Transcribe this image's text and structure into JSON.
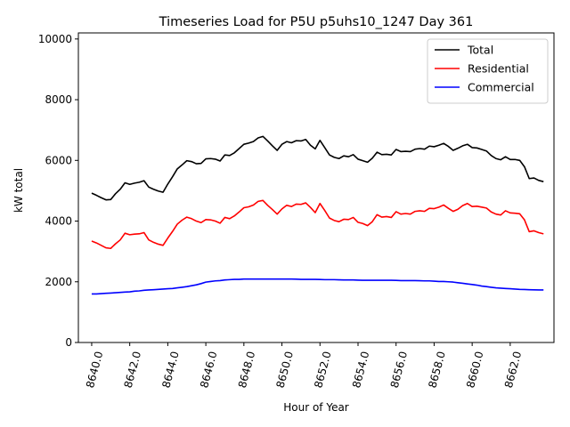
{
  "chart_data": {
    "type": "line",
    "title": "Timeseries Load for P5U p5uhs10_1247  Day 361",
    "xlabel": "Hour of Year",
    "ylabel": "kW total",
    "xlim": [
      8639.3,
      8664.3
    ],
    "ylim": [
      0,
      10200
    ],
    "xticks": [
      8640,
      8642,
      8644,
      8646,
      8648,
      8650,
      8652,
      8654,
      8656,
      8658,
      8660,
      8662
    ],
    "xtick_labels": [
      "8640.0",
      "8642.0",
      "8644.0",
      "8646.0",
      "8648.0",
      "8650.0",
      "8652.0",
      "8654.0",
      "8656.0",
      "8658.0",
      "8660.0",
      "8662.0"
    ],
    "yticks": [
      0,
      2000,
      4000,
      6000,
      8000,
      10000
    ],
    "ytick_labels": [
      "0",
      "2000",
      "4000",
      "6000",
      "8000",
      "10000"
    ],
    "grid": false,
    "legend_position": "top-right",
    "x": [
      8640.0,
      8640.25,
      8640.5,
      8640.75,
      8641.0,
      8641.25,
      8641.5,
      8641.75,
      8642.0,
      8642.25,
      8642.5,
      8642.75,
      8643.0,
      8643.25,
      8643.5,
      8643.75,
      8644.0,
      8644.25,
      8644.5,
      8644.75,
      8645.0,
      8645.25,
      8645.5,
      8645.75,
      8646.0,
      8646.25,
      8646.5,
      8646.75,
      8647.0,
      8647.25,
      8647.5,
      8647.75,
      8648.0,
      8648.25,
      8648.5,
      8648.75,
      8649.0,
      8649.25,
      8649.5,
      8649.75,
      8650.0,
      8650.25,
      8650.5,
      8650.75,
      8651.0,
      8651.25,
      8651.5,
      8651.75,
      8652.0,
      8652.25,
      8652.5,
      8652.75,
      8653.0,
      8653.25,
      8653.5,
      8653.75,
      8654.0,
      8654.25,
      8654.5,
      8654.75,
      8655.0,
      8655.25,
      8655.5,
      8655.75,
      8656.0,
      8656.25,
      8656.5,
      8656.75,
      8657.0,
      8657.25,
      8657.5,
      8657.75,
      8658.0,
      8658.25,
      8658.5,
      8658.75,
      8659.0,
      8659.25,
      8659.5,
      8659.75,
      8660.0,
      8660.25,
      8660.5,
      8660.75,
      8661.0,
      8661.25,
      8661.5,
      8661.75,
      8662.0,
      8662.25,
      8662.5,
      8662.75,
      8663.0,
      8663.25,
      8663.5,
      8663.75
    ],
    "series": [
      {
        "name": "Total",
        "color": "#000000",
        "values": [
          4920,
          4850,
          4770,
          4700,
          4710,
          4900,
          5050,
          5260,
          5210,
          5250,
          5280,
          5330,
          5120,
          5050,
          4990,
          4950,
          5220,
          5460,
          5720,
          5850,
          5990,
          5960,
          5890,
          5900,
          6050,
          6060,
          6040,
          5980,
          6180,
          6160,
          6250,
          6390,
          6530,
          6570,
          6620,
          6740,
          6790,
          6640,
          6480,
          6330,
          6530,
          6620,
          6580,
          6650,
          6640,
          6690,
          6500,
          6380,
          6660,
          6420,
          6180,
          6100,
          6060,
          6150,
          6120,
          6190,
          6040,
          5990,
          5940,
          6070,
          6270,
          6190,
          6200,
          6180,
          6360,
          6290,
          6300,
          6290,
          6370,
          6390,
          6370,
          6470,
          6450,
          6500,
          6560,
          6460,
          6330,
          6400,
          6480,
          6530,
          6420,
          6410,
          6360,
          6310,
          6160,
          6060,
          6020,
          6120,
          6030,
          6030,
          6000,
          5790,
          5400,
          5420,
          5340,
          5300
        ]
      },
      {
        "name": "Residential",
        "color": "#ff0000",
        "values": [
          3340,
          3280,
          3200,
          3120,
          3100,
          3250,
          3380,
          3600,
          3550,
          3570,
          3580,
          3620,
          3380,
          3300,
          3240,
          3200,
          3440,
          3660,
          3900,
          4030,
          4130,
          4080,
          4000,
          3950,
          4050,
          4040,
          4000,
          3930,
          4120,
          4080,
          4170,
          4300,
          4440,
          4470,
          4530,
          4650,
          4680,
          4520,
          4380,
          4230,
          4400,
          4520,
          4480,
          4560,
          4550,
          4600,
          4450,
          4280,
          4580,
          4350,
          4100,
          4020,
          3980,
          4060,
          4050,
          4120,
          3960,
          3920,
          3850,
          3980,
          4210,
          4130,
          4150,
          4120,
          4310,
          4230,
          4250,
          4230,
          4320,
          4340,
          4320,
          4420,
          4410,
          4460,
          4530,
          4420,
          4320,
          4390,
          4510,
          4580,
          4480,
          4490,
          4460,
          4430,
          4300,
          4230,
          4200,
          4340,
          4270,
          4260,
          4240,
          4040,
          3650,
          3680,
          3620,
          3580
        ]
      },
      {
        "name": "Commercial",
        "color": "#0000ff",
        "values": [
          1600,
          1600,
          1610,
          1620,
          1630,
          1640,
          1650,
          1660,
          1670,
          1690,
          1700,
          1720,
          1730,
          1740,
          1750,
          1760,
          1770,
          1780,
          1800,
          1820,
          1840,
          1870,
          1900,
          1940,
          1990,
          2010,
          2030,
          2040,
          2060,
          2070,
          2080,
          2080,
          2090,
          2090,
          2090,
          2090,
          2090,
          2090,
          2090,
          2090,
          2090,
          2090,
          2090,
          2085,
          2080,
          2080,
          2080,
          2080,
          2075,
          2070,
          2070,
          2070,
          2065,
          2060,
          2060,
          2060,
          2055,
          2050,
          2050,
          2050,
          2050,
          2050,
          2050,
          2050,
          2045,
          2040,
          2040,
          2040,
          2040,
          2035,
          2030,
          2030,
          2020,
          2010,
          2010,
          2000,
          1990,
          1970,
          1950,
          1930,
          1910,
          1890,
          1860,
          1840,
          1820,
          1800,
          1790,
          1780,
          1770,
          1760,
          1750,
          1745,
          1740,
          1735,
          1730,
          1730
        ]
      }
    ]
  }
}
